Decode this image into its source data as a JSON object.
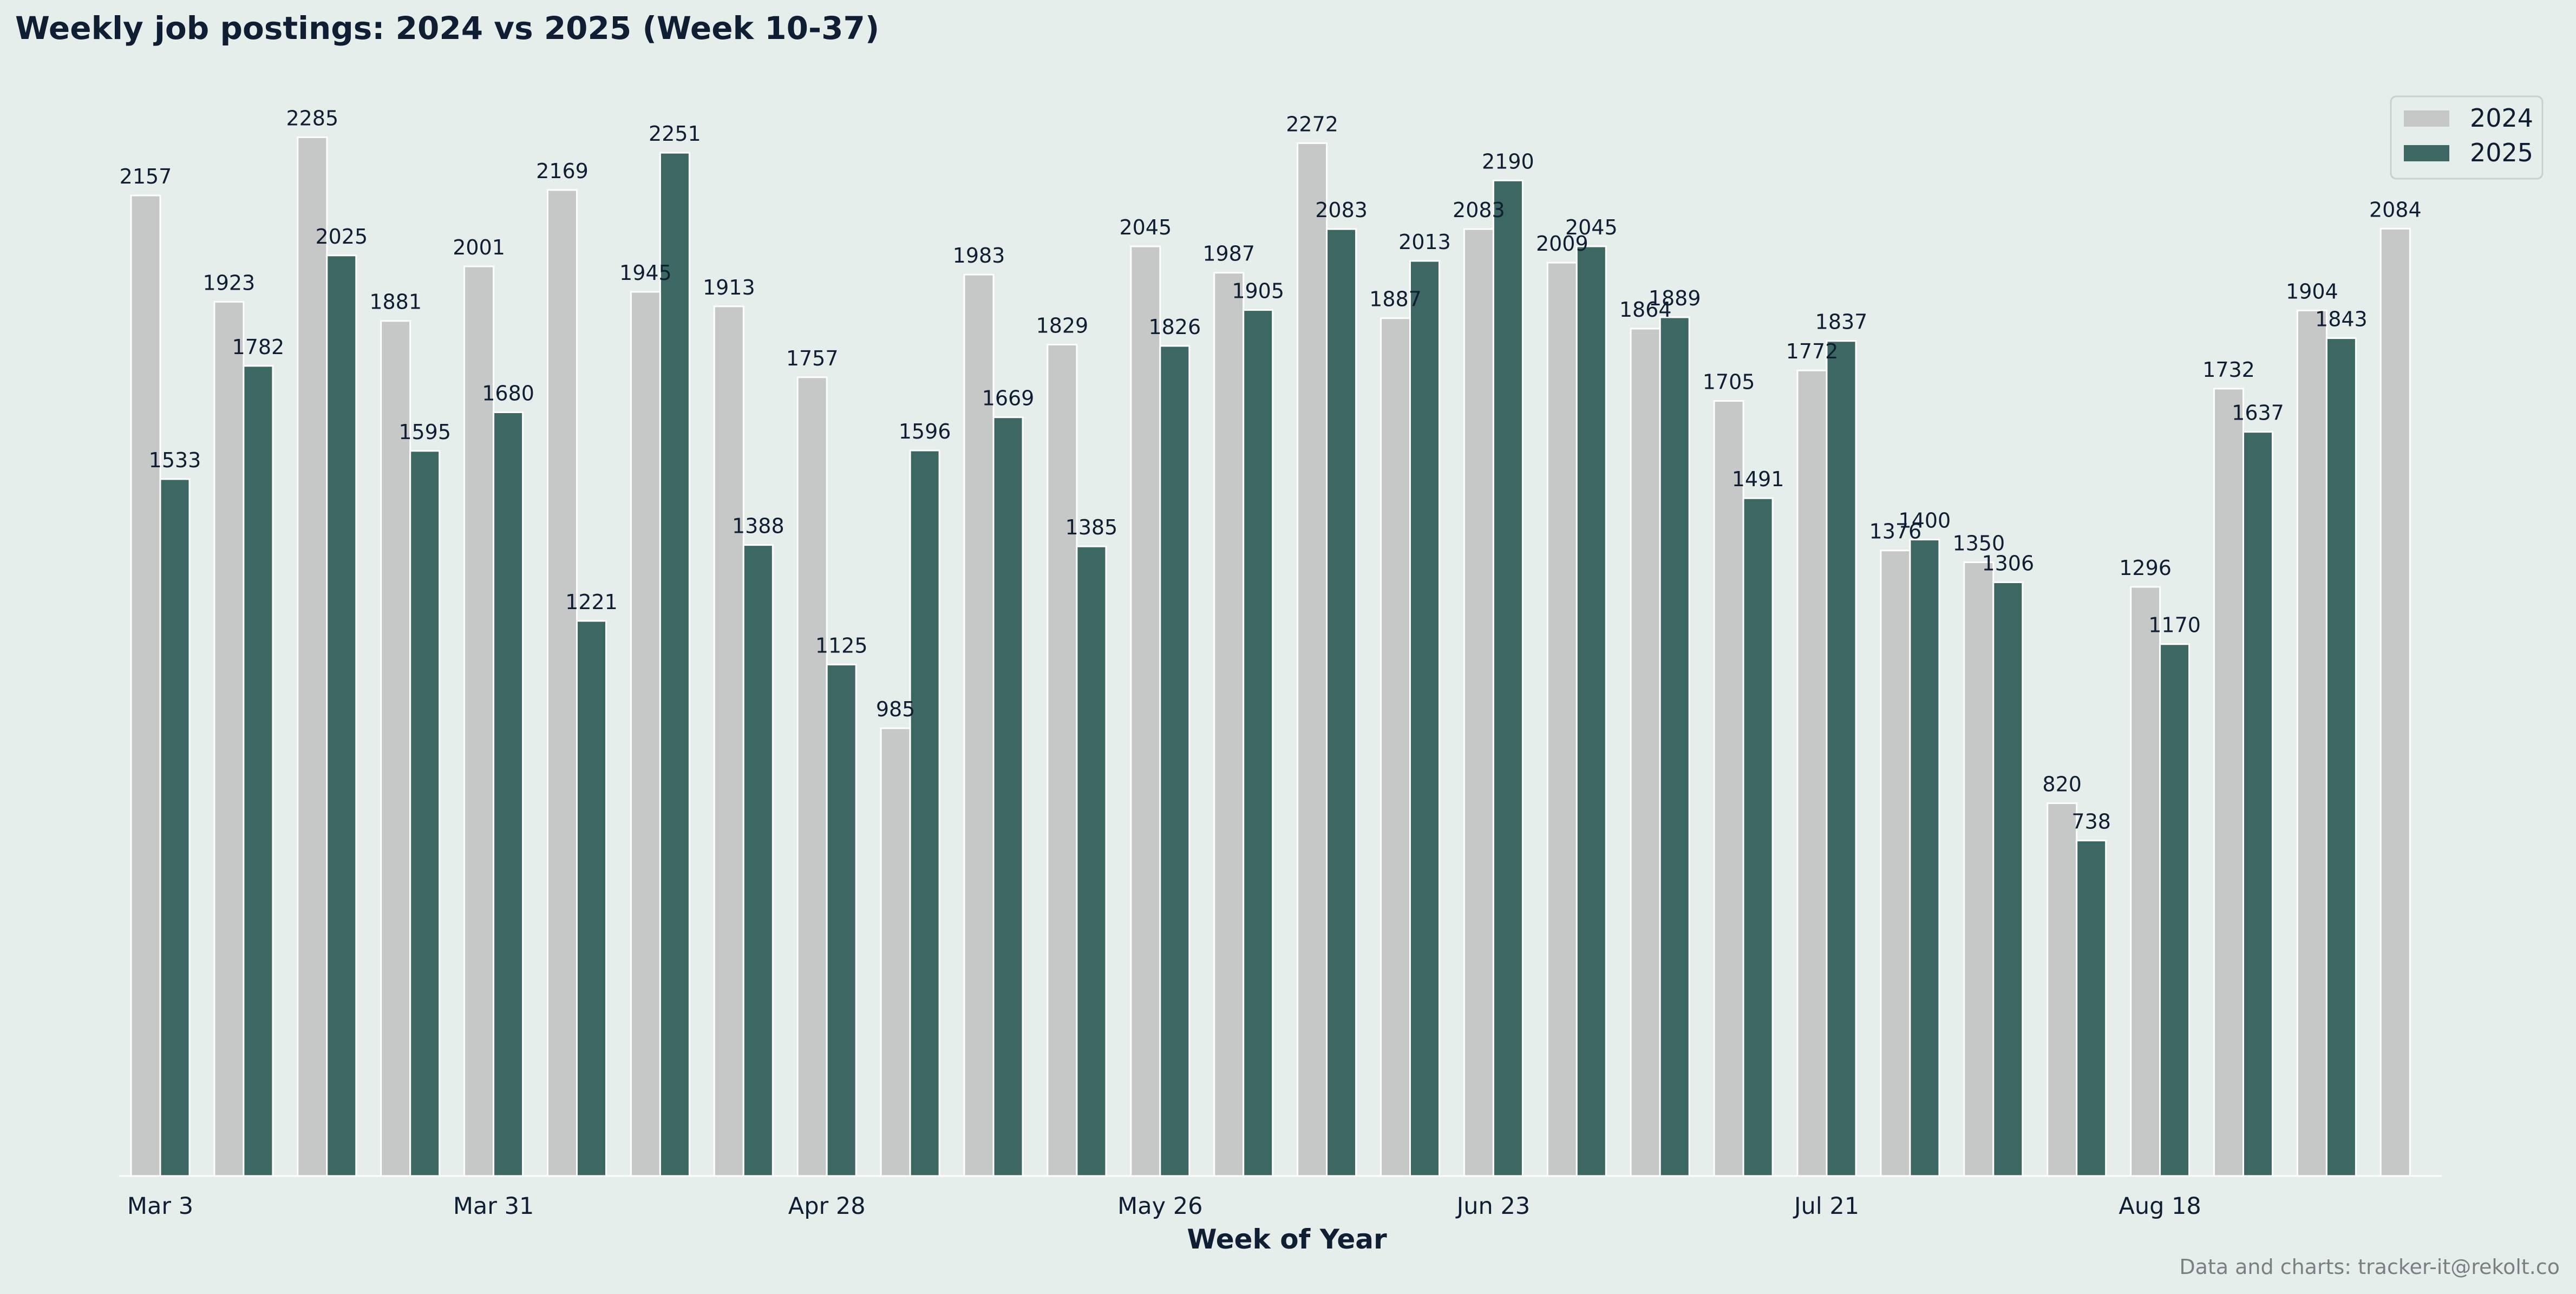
{
  "colors": {
    "background": "#e5eeeb",
    "series_2024": "#c6c8c7",
    "series_2025": "#3d6763",
    "text": "#0f1e33",
    "credit": "#7a7f82"
  },
  "footer": {
    "credit": "Data and charts: tracker-it@rekolt.co"
  },
  "chart_data": {
    "type": "bar",
    "title": "Weekly job postings: 2024 vs 2025 (Week 10-37)",
    "xlabel": "Week of Year",
    "ylabel": "",
    "grid": false,
    "legend_position": "top-right",
    "ylim": [
      0,
      2400
    ],
    "categories": [
      "10",
      "11",
      "12",
      "13",
      "14",
      "15",
      "16",
      "17",
      "18",
      "19",
      "20",
      "21",
      "22",
      "23",
      "24",
      "25",
      "26",
      "27",
      "28",
      "29",
      "30",
      "31",
      "32",
      "33",
      "34",
      "35",
      "36",
      "37"
    ],
    "tick_labels": [
      "Mar 3",
      "",
      "",
      "",
      "Mar 31",
      "",
      "",
      "",
      "Apr 28",
      "",
      "",
      "",
      "May 26",
      "",
      "",
      "",
      "Jun 23",
      "",
      "",
      "",
      "Jul 21",
      "",
      "",
      "",
      "Aug 18",
      "",
      "",
      ""
    ],
    "series": [
      {
        "name": "2024",
        "values": [
          2157,
          1923,
          2285,
          1881,
          2001,
          2169,
          1945,
          1913,
          1757,
          985,
          1983,
          1829,
          2045,
          1987,
          2272,
          1887,
          2083,
          2009,
          1864,
          1705,
          1772,
          1376,
          1350,
          820,
          1296,
          1732,
          1904,
          2084
        ]
      },
      {
        "name": "2025",
        "values": [
          1533,
          1782,
          2025,
          1595,
          1680,
          1221,
          2251,
          1388,
          1125,
          1596,
          1669,
          1385,
          1826,
          1905,
          2083,
          2013,
          2190,
          2045,
          1889,
          1491,
          1837,
          1400,
          1306,
          738,
          1170,
          1637,
          1843,
          null
        ]
      }
    ]
  }
}
